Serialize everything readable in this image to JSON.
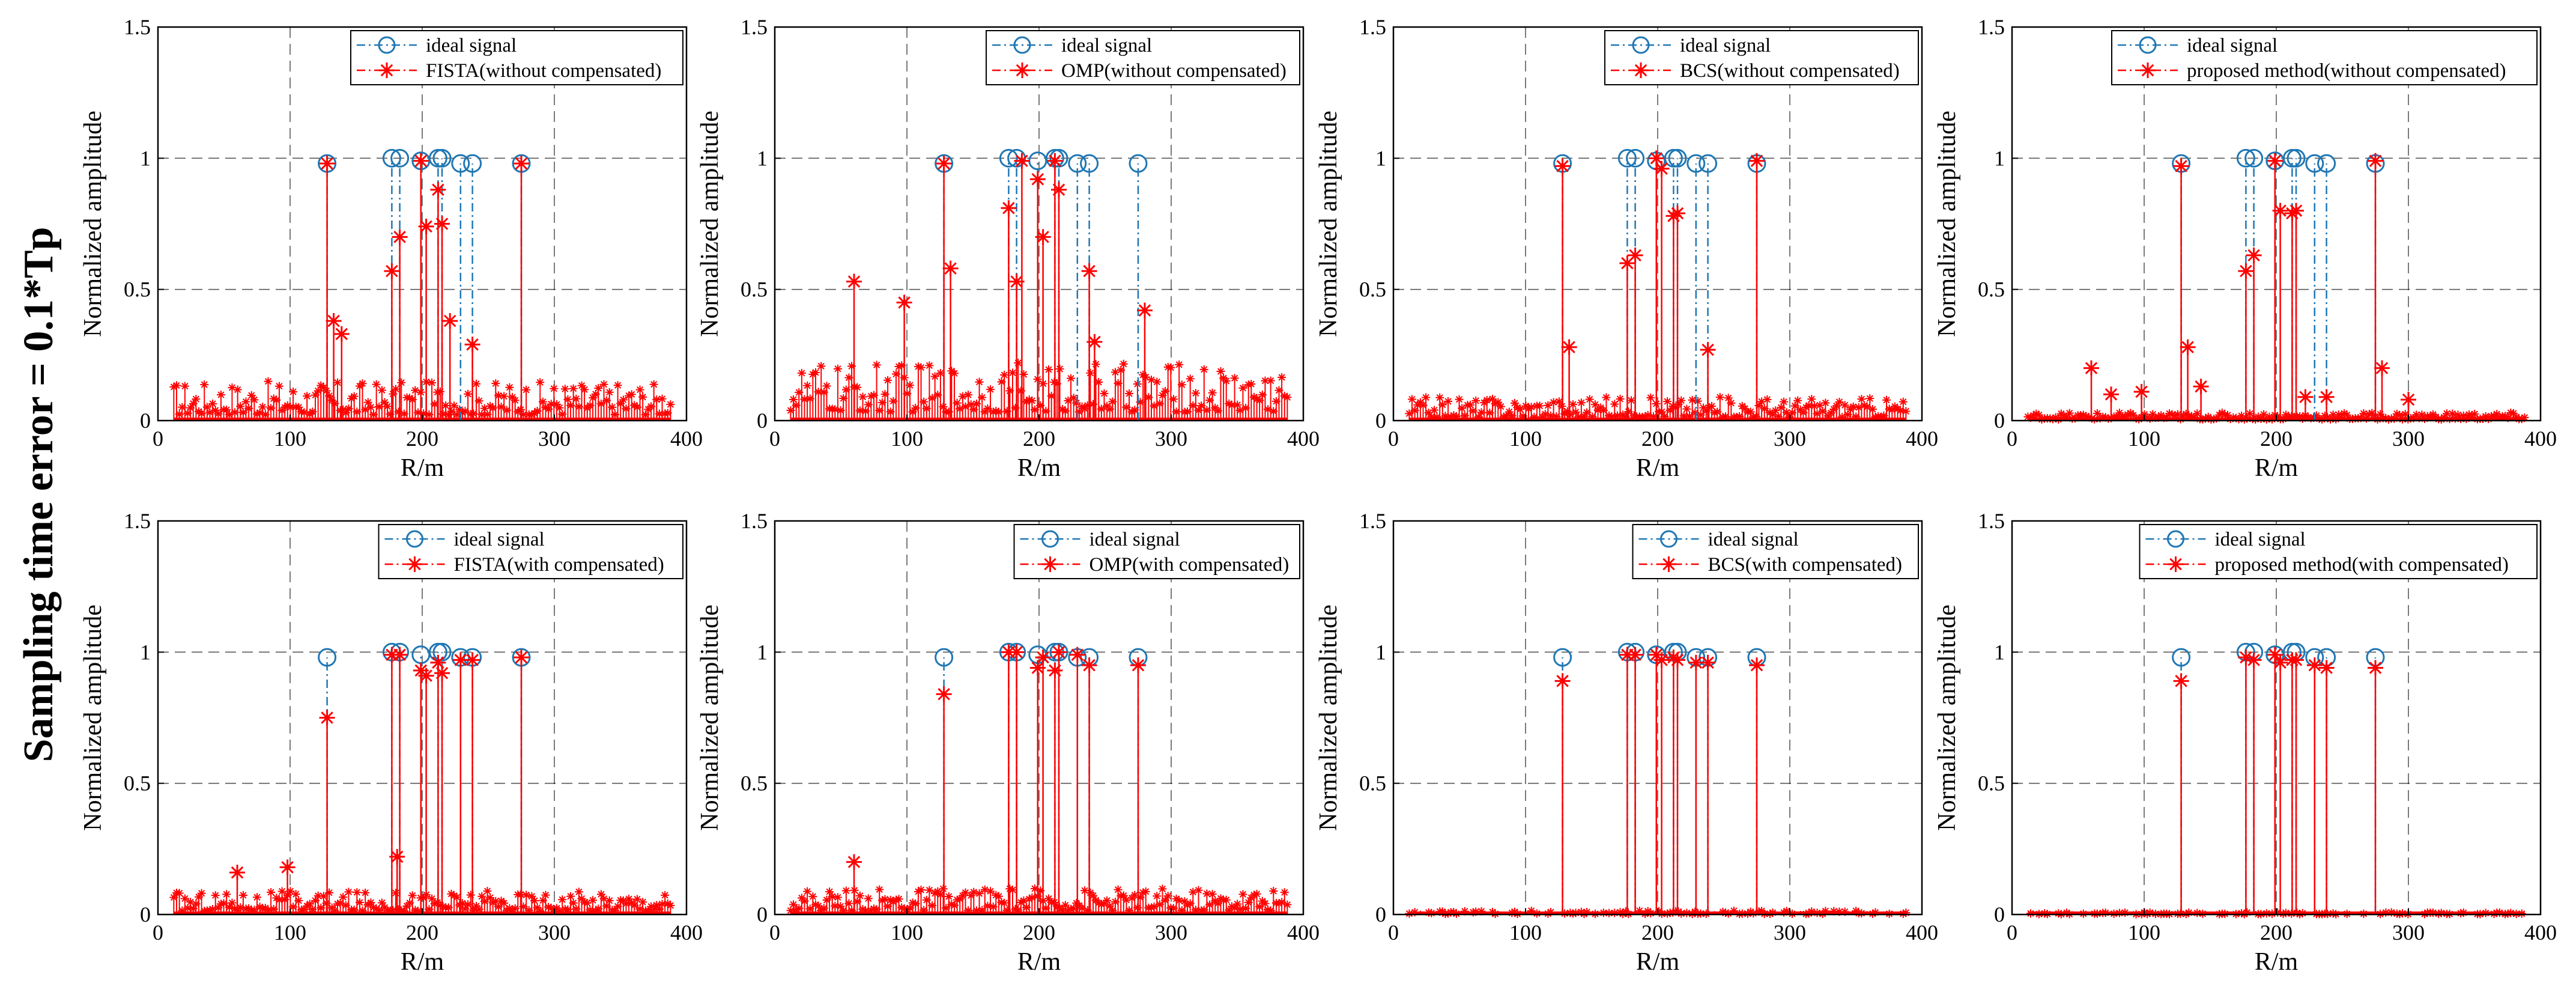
{
  "figure": {
    "row_title": "Sampling time error = 0.1*Tp",
    "colors": {
      "ideal": "#1f77b4",
      "method": "#ff0000",
      "grid": "#000000"
    }
  },
  "chart_data": [
    {
      "type": "stem",
      "panel": "row1-col1",
      "xlabel": "R/m",
      "ylabel": "Normalized amplitude",
      "xlim": [
        0,
        400
      ],
      "ylim": [
        0,
        1.5
      ],
      "xticks": [
        0,
        100,
        200,
        300,
        400
      ],
      "yticks": [
        0,
        0.5,
        1,
        1.5
      ],
      "grid": "dashed",
      "legend_position": "top-right",
      "noise_level": 0.15,
      "series": [
        {
          "name": "ideal signal",
          "marker": "circle",
          "line": "dash-dot",
          "x": [
            128,
            177,
            183,
            199,
            212,
            215,
            229,
            238,
            275
          ],
          "y": [
            0.98,
            1.0,
            1.0,
            0.99,
            1.0,
            1.0,
            0.98,
            0.98,
            0.98
          ]
        },
        {
          "name": "FISTA(without compensated)",
          "marker": "asterisk",
          "line": "dash-dot",
          "x": [
            128,
            133,
            139,
            177,
            183,
            199,
            203,
            212,
            215,
            221,
            238,
            275
          ],
          "y": [
            0.98,
            0.38,
            0.33,
            0.57,
            0.7,
            0.99,
            0.74,
            0.88,
            0.75,
            0.38,
            0.29,
            0.98
          ]
        }
      ]
    },
    {
      "type": "stem",
      "panel": "row1-col2",
      "xlabel": "R/m",
      "ylabel": "Normalized amplitude",
      "xlim": [
        0,
        400
      ],
      "ylim": [
        0,
        1.5
      ],
      "xticks": [
        0,
        100,
        200,
        300,
        400
      ],
      "yticks": [
        0,
        0.5,
        1,
        1.5
      ],
      "grid": "dashed",
      "legend_position": "top-right",
      "noise_level": 0.22,
      "series": [
        {
          "name": "ideal signal",
          "marker": "circle",
          "line": "dash-dot",
          "x": [
            128,
            177,
            183,
            199,
            212,
            215,
            229,
            238,
            275
          ],
          "y": [
            0.98,
            1.0,
            1.0,
            0.99,
            1.0,
            1.0,
            0.98,
            0.98,
            0.98
          ]
        },
        {
          "name": "OMP(without compensated)",
          "marker": "asterisk",
          "line": "dash-dot",
          "x": [
            60,
            98,
            128,
            133,
            177,
            183,
            187,
            199,
            203,
            212,
            215,
            238,
            242,
            280
          ],
          "y": [
            0.53,
            0.45,
            0.98,
            0.58,
            0.81,
            0.53,
            0.99,
            0.92,
            0.7,
            0.99,
            0.88,
            0.57,
            0.3,
            0.42
          ]
        }
      ]
    },
    {
      "type": "stem",
      "panel": "row1-col3",
      "xlabel": "R/m",
      "ylabel": "Normalized amplitude",
      "xlim": [
        0,
        400
      ],
      "ylim": [
        0,
        1.5
      ],
      "xticks": [
        0,
        100,
        200,
        300,
        400
      ],
      "yticks": [
        0,
        0.5,
        1,
        1.5
      ],
      "grid": "dashed",
      "legend_position": "top-right",
      "noise_level": 0.09,
      "series": [
        {
          "name": "ideal signal",
          "marker": "circle",
          "line": "dash-dot",
          "x": [
            128,
            177,
            183,
            199,
            212,
            215,
            229,
            238,
            275
          ],
          "y": [
            0.98,
            1.0,
            1.0,
            0.99,
            1.0,
            1.0,
            0.98,
            0.98,
            0.98
          ]
        },
        {
          "name": "BCS(without compensated)",
          "marker": "asterisk",
          "line": "dash-dot",
          "x": [
            128,
            133,
            177,
            183,
            199,
            203,
            212,
            215,
            238,
            275
          ],
          "y": [
            0.97,
            0.28,
            0.6,
            0.63,
            1.0,
            0.96,
            0.78,
            0.79,
            0.27,
            0.99
          ]
        }
      ]
    },
    {
      "type": "stem",
      "panel": "row1-col4",
      "xlabel": "R/m",
      "ylabel": "Normalized amplitude",
      "xlim": [
        0,
        400
      ],
      "ylim": [
        0,
        1.5
      ],
      "xticks": [
        0,
        100,
        200,
        300,
        400
      ],
      "yticks": [
        0,
        0.5,
        1,
        1.5
      ],
      "grid": "dashed",
      "legend_position": "top-right",
      "noise_level": 0.03,
      "series": [
        {
          "name": "ideal signal",
          "marker": "circle",
          "line": "dash-dot",
          "x": [
            128,
            177,
            183,
            199,
            212,
            215,
            229,
            238,
            275
          ],
          "y": [
            0.98,
            1.0,
            1.0,
            0.99,
            1.0,
            1.0,
            0.98,
            0.98,
            0.98
          ]
        },
        {
          "name": "proposed method(without compensated)",
          "marker": "asterisk",
          "line": "dash-dot",
          "x": [
            60,
            75,
            98,
            128,
            133,
            143,
            177,
            183,
            199,
            203,
            212,
            215,
            222,
            238,
            275,
            280,
            300
          ],
          "y": [
            0.2,
            0.1,
            0.11,
            0.97,
            0.28,
            0.13,
            0.57,
            0.63,
            0.99,
            0.8,
            0.79,
            0.8,
            0.09,
            0.09,
            0.99,
            0.2,
            0.08
          ]
        }
      ]
    },
    {
      "type": "stem",
      "panel": "row2-col1",
      "xlabel": "R/m",
      "ylabel": "Normalized amplitude",
      "xlim": [
        0,
        400
      ],
      "ylim": [
        0,
        1.5
      ],
      "xticks": [
        0,
        100,
        200,
        300,
        400
      ],
      "yticks": [
        0,
        0.5,
        1,
        1.5
      ],
      "grid": "dashed",
      "legend_position": "top-right",
      "noise_level": 0.09,
      "series": [
        {
          "name": "ideal signal",
          "marker": "circle",
          "line": "dash-dot",
          "x": [
            128,
            177,
            183,
            199,
            212,
            215,
            229,
            238,
            275
          ],
          "y": [
            0.98,
            1.0,
            1.0,
            0.99,
            1.0,
            1.0,
            0.98,
            0.98,
            0.98
          ]
        },
        {
          "name": "FISTA(with compensated)",
          "marker": "asterisk",
          "line": "dash-dot",
          "x": [
            60,
            98,
            128,
            177,
            181,
            183,
            199,
            203,
            212,
            215,
            229,
            238,
            275
          ],
          "y": [
            0.16,
            0.18,
            0.75,
            0.99,
            0.22,
            0.99,
            0.93,
            0.91,
            0.96,
            0.92,
            0.97,
            0.97,
            0.98
          ]
        }
      ]
    },
    {
      "type": "stem",
      "panel": "row2-col2",
      "xlabel": "R/m",
      "ylabel": "Normalized amplitude",
      "xlim": [
        0,
        400
      ],
      "ylim": [
        0,
        1.5
      ],
      "xticks": [
        0,
        100,
        200,
        300,
        400
      ],
      "yticks": [
        0,
        0.5,
        1,
        1.5
      ],
      "grid": "dashed",
      "legend_position": "top-right",
      "noise_level": 0.1,
      "series": [
        {
          "name": "ideal signal",
          "marker": "circle",
          "line": "dash-dot",
          "x": [
            128,
            177,
            183,
            199,
            212,
            215,
            229,
            238,
            275
          ],
          "y": [
            0.98,
            1.0,
            1.0,
            0.99,
            1.0,
            1.0,
            0.98,
            0.98,
            0.98
          ]
        },
        {
          "name": "OMP(with compensated)",
          "marker": "asterisk",
          "line": "dash-dot",
          "x": [
            60,
            128,
            177,
            183,
            199,
            203,
            212,
            215,
            229,
            238,
            275
          ],
          "y": [
            0.2,
            0.84,
            1.0,
            1.0,
            0.94,
            0.98,
            0.93,
            1.0,
            0.99,
            0.95,
            0.95
          ]
        }
      ]
    },
    {
      "type": "stem",
      "panel": "row2-col3",
      "xlabel": "R/m",
      "ylabel": "Normalized amplitude",
      "xlim": [
        0,
        400
      ],
      "ylim": [
        0,
        1.5
      ],
      "xticks": [
        0,
        100,
        200,
        300,
        400
      ],
      "yticks": [
        0,
        0.5,
        1,
        1.5
      ],
      "grid": "dashed",
      "legend_position": "top-right",
      "noise_level": 0.015,
      "series": [
        {
          "name": "ideal signal",
          "marker": "circle",
          "line": "dash-dot",
          "x": [
            128,
            177,
            183,
            199,
            212,
            215,
            229,
            238,
            275
          ],
          "y": [
            0.98,
            1.0,
            1.0,
            0.99,
            1.0,
            1.0,
            0.98,
            0.98,
            0.98
          ]
        },
        {
          "name": "BCS(with compensated)",
          "marker": "asterisk",
          "line": "dash-dot",
          "x": [
            128,
            177,
            183,
            199,
            203,
            212,
            215,
            229,
            238,
            275
          ],
          "y": [
            0.89,
            0.99,
            0.99,
            0.99,
            0.97,
            0.98,
            0.97,
            0.96,
            0.96,
            0.95
          ]
        }
      ]
    },
    {
      "type": "stem",
      "panel": "row2-col4",
      "xlabel": "R/m",
      "ylabel": "Normalized amplitude",
      "xlim": [
        0,
        400
      ],
      "ylim": [
        0,
        1.5
      ],
      "xticks": [
        0,
        100,
        200,
        300,
        400
      ],
      "yticks": [
        0,
        0.5,
        1,
        1.5
      ],
      "grid": "dashed",
      "legend_position": "top-right",
      "noise_level": 0.008,
      "series": [
        {
          "name": "ideal signal",
          "marker": "circle",
          "line": "dash-dot",
          "x": [
            128,
            177,
            183,
            199,
            212,
            215,
            229,
            238,
            275
          ],
          "y": [
            0.98,
            1.0,
            1.0,
            0.99,
            1.0,
            1.0,
            0.98,
            0.98,
            0.98
          ]
        },
        {
          "name": "proposed method(with compensated)",
          "marker": "asterisk",
          "line": "dash-dot",
          "x": [
            128,
            177,
            183,
            199,
            203,
            212,
            215,
            229,
            238,
            275
          ],
          "y": [
            0.89,
            0.98,
            0.97,
            0.99,
            0.96,
            0.97,
            0.97,
            0.95,
            0.94,
            0.94
          ]
        }
      ]
    }
  ]
}
